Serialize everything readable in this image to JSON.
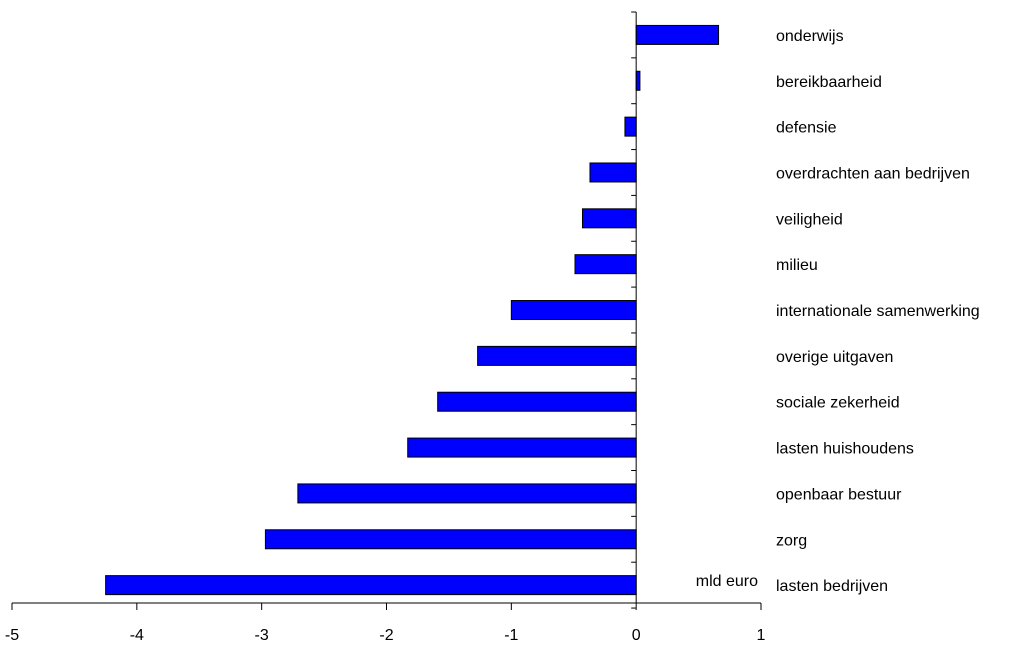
{
  "chart_data": {
    "type": "bar",
    "orientation": "horizontal",
    "unit_label": "mld euro",
    "categories": [
      "onderwijs",
      "bereikbaarheid",
      "defensie",
      "overdrachten aan bedrijven",
      "veiligheid",
      "milieu",
      "internationale samenwerking",
      "overige uitgaven",
      "sociale zekerheid",
      "lasten huishoudens",
      "openbaar  bestuur",
      "zorg",
      "lasten bedrijven"
    ],
    "values": [
      0.66,
      0.03,
      -0.09,
      -0.37,
      -0.43,
      -0.49,
      -1.0,
      -1.27,
      -1.59,
      -1.83,
      -2.71,
      -2.97,
      -4.25
    ],
    "xlim": [
      -5,
      1
    ],
    "xticks": [
      "-5",
      "-4",
      "-3",
      "-2",
      "-1",
      "0",
      "1"
    ],
    "bar_color": "#0000ff",
    "grid": false,
    "legend": "none"
  }
}
